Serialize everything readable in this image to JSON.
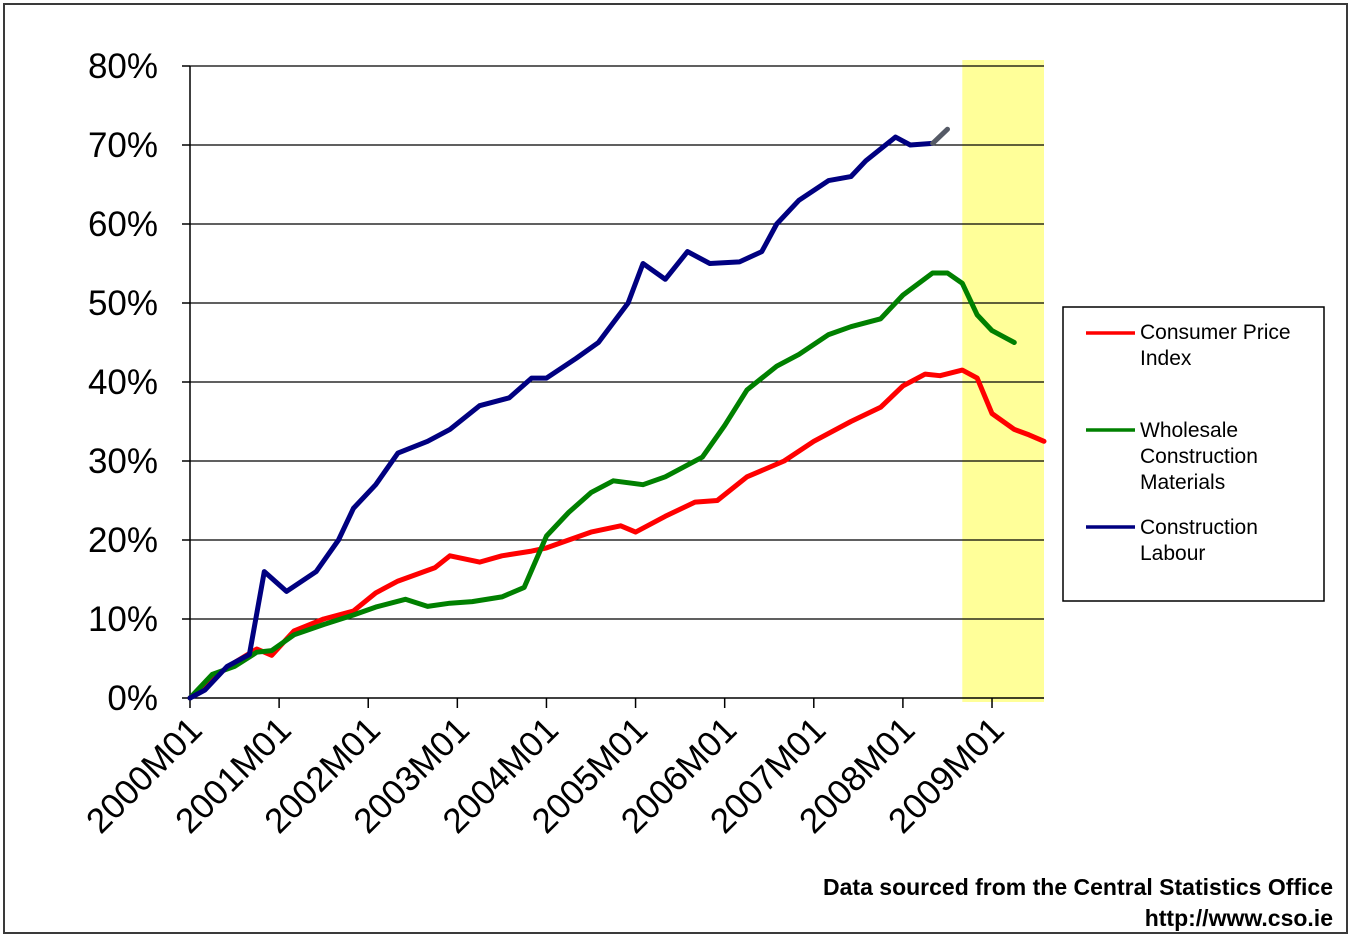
{
  "chart_data": {
    "type": "line",
    "y_ticks": [
      "0%",
      "10%",
      "20%",
      "30%",
      "40%",
      "50%",
      "60%",
      "70%",
      "80%"
    ],
    "ylim": [
      0,
      80
    ],
    "x_tick_labels": [
      "2000M01",
      "2001M01",
      "2002M01",
      "2003M01",
      "2004M01",
      "2005M01",
      "2006M01",
      "2007M01",
      "2008M01",
      "2009M01"
    ],
    "x_range_months": [
      0,
      115
    ],
    "grid": true,
    "legend_position": "right",
    "highlight": {
      "from_month": 104,
      "to_month": 115,
      "color": "#ffff99"
    },
    "series": [
      {
        "name": "Consumer Price Index",
        "color": "#ff0000",
        "points": [
          [
            0,
            0
          ],
          [
            3,
            2.5
          ],
          [
            6,
            4.5
          ],
          [
            9,
            6.2
          ],
          [
            11,
            5.4
          ],
          [
            14,
            8.5
          ],
          [
            18,
            10
          ],
          [
            22,
            11
          ],
          [
            25,
            13.3
          ],
          [
            28,
            14.8
          ],
          [
            33,
            16.5
          ],
          [
            35,
            18
          ],
          [
            39,
            17.2
          ],
          [
            42,
            18
          ],
          [
            46,
            18.6
          ],
          [
            48,
            19
          ],
          [
            51,
            20
          ],
          [
            54,
            21
          ],
          [
            58,
            21.8
          ],
          [
            60,
            21
          ],
          [
            64,
            23
          ],
          [
            68,
            24.8
          ],
          [
            71,
            25
          ],
          [
            75,
            28
          ],
          [
            80,
            30
          ],
          [
            84,
            32.5
          ],
          [
            89,
            35
          ],
          [
            93,
            36.8
          ],
          [
            96,
            39.5
          ],
          [
            99,
            41
          ],
          [
            101,
            40.8
          ],
          [
            104,
            41.5
          ],
          [
            106,
            40.5
          ],
          [
            108,
            36
          ],
          [
            111,
            34
          ],
          [
            113,
            33.3
          ],
          [
            115,
            32.5
          ]
        ]
      },
      {
        "name": "Wholesale Construction Materials",
        "color": "#008000",
        "points": [
          [
            0,
            0
          ],
          [
            3,
            3
          ],
          [
            6,
            4
          ],
          [
            9,
            5.8
          ],
          [
            11,
            6
          ],
          [
            14,
            8
          ],
          [
            18,
            9.3
          ],
          [
            22,
            10.5
          ],
          [
            25,
            11.5
          ],
          [
            29,
            12.5
          ],
          [
            32,
            11.6
          ],
          [
            35,
            12
          ],
          [
            38,
            12.2
          ],
          [
            42,
            12.8
          ],
          [
            45,
            14
          ],
          [
            48,
            20.5
          ],
          [
            51,
            23.5
          ],
          [
            54,
            26
          ],
          [
            57,
            27.5
          ],
          [
            61,
            27
          ],
          [
            64,
            28
          ],
          [
            69,
            30.5
          ],
          [
            72,
            34.5
          ],
          [
            75,
            39
          ],
          [
            79,
            42
          ],
          [
            82,
            43.5
          ],
          [
            86,
            46
          ],
          [
            89,
            47
          ],
          [
            93,
            48
          ],
          [
            96,
            51
          ],
          [
            100,
            53.8
          ],
          [
            102,
            53.8
          ],
          [
            104,
            52.5
          ],
          [
            106,
            48.5
          ],
          [
            108,
            46.5
          ],
          [
            110,
            45.5
          ],
          [
            111,
            45
          ]
        ]
      },
      {
        "name": "Construction Labour",
        "color": "#000080",
        "points": [
          [
            0,
            0
          ],
          [
            2,
            1
          ],
          [
            5,
            4
          ],
          [
            8,
            5.5
          ],
          [
            10,
            16
          ],
          [
            13,
            13.5
          ],
          [
            17,
            16
          ],
          [
            20,
            20
          ],
          [
            22,
            24
          ],
          [
            25,
            27
          ],
          [
            28,
            31
          ],
          [
            32,
            32.5
          ],
          [
            35,
            34
          ],
          [
            39,
            37
          ],
          [
            43,
            38
          ],
          [
            46,
            40.5
          ],
          [
            48,
            40.5
          ],
          [
            52,
            43
          ],
          [
            55,
            45
          ],
          [
            59,
            50
          ],
          [
            61,
            55
          ],
          [
            64,
            53
          ],
          [
            67,
            56.5
          ],
          [
            70,
            55
          ],
          [
            74,
            55.2
          ],
          [
            77,
            56.5
          ],
          [
            79,
            60
          ],
          [
            82,
            63
          ],
          [
            86,
            65.5
          ],
          [
            89,
            66
          ],
          [
            91,
            68
          ],
          [
            95,
            71
          ],
          [
            97,
            70
          ],
          [
            100,
            70.2
          ]
        ]
      }
    ],
    "projection": {
      "color": "#555a66",
      "points": [
        [
          100,
          70.2
        ],
        [
          102,
          72
        ]
      ]
    }
  },
  "source": {
    "line1": "Data sourced from the Central Statistics Office",
    "line2": "http://www.cso.ie"
  }
}
